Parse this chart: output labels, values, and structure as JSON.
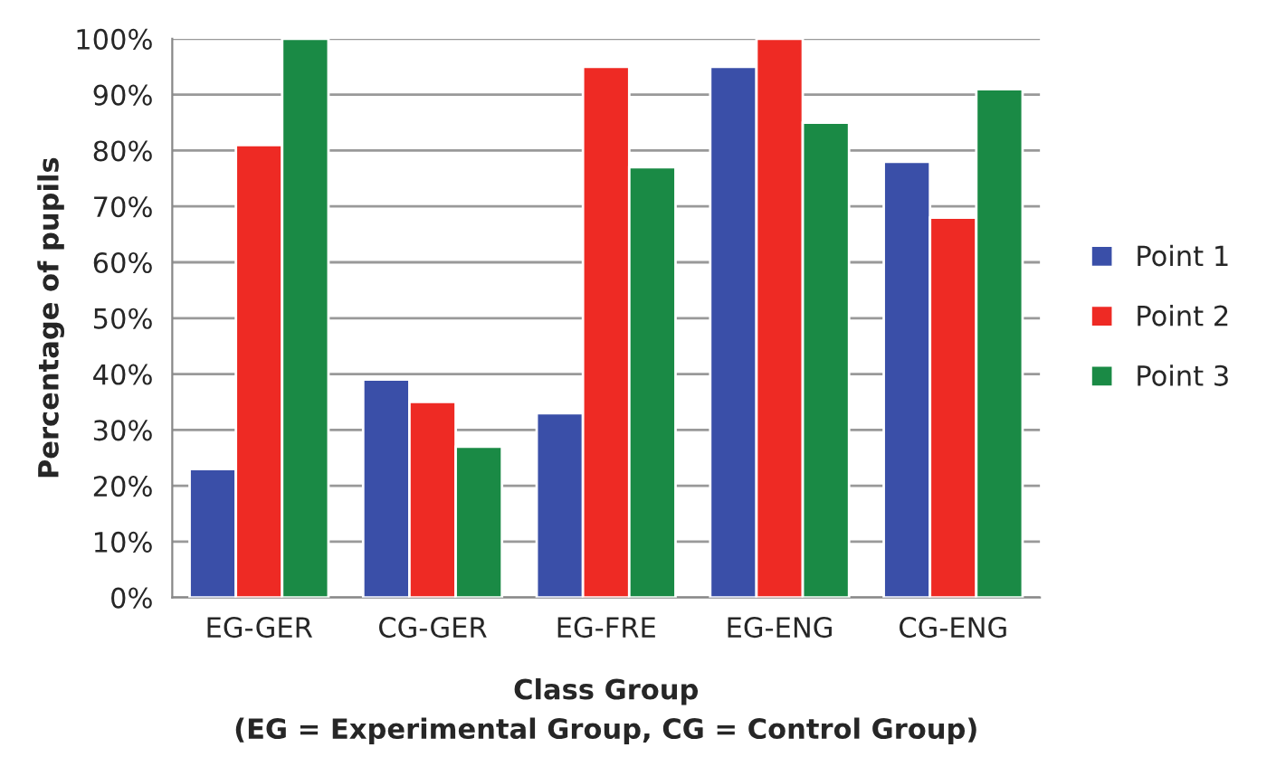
{
  "chart_data": {
    "type": "bar",
    "categories": [
      "EG-GER",
      "CG-GER",
      "EG-FRE",
      "EG-ENG",
      "CG-ENG"
    ],
    "series": [
      {
        "name": "Point 1",
        "color": "#3a4fa8",
        "values": [
          23,
          39,
          33,
          95,
          78
        ]
      },
      {
        "name": "Point 2",
        "color": "#ee2a24",
        "values": [
          81,
          35,
          95,
          100,
          68
        ]
      },
      {
        "name": "Point 3",
        "color": "#1a8a45",
        "values": [
          100,
          27,
          77,
          85,
          91
        ]
      }
    ],
    "xlabel": "Class Group\n(EG = Experimental Group, CG = Control Group)",
    "ylabel": "Percentage of pupils",
    "ylim": [
      0,
      100
    ],
    "yticks": [
      {
        "value": 0,
        "label": "0%"
      },
      {
        "value": 10,
        "label": "10%"
      },
      {
        "value": 20,
        "label": "20%"
      },
      {
        "value": 30,
        "label": "30%"
      },
      {
        "value": 40,
        "label": "40%"
      },
      {
        "value": 50,
        "label": "50%"
      },
      {
        "value": 60,
        "label": "60%"
      },
      {
        "value": 70,
        "label": "70%"
      },
      {
        "value": 80,
        "label": "80%"
      },
      {
        "value": 90,
        "label": "90%"
      },
      {
        "value": 100,
        "label": "100%"
      }
    ],
    "grid": "y",
    "legend": "right"
  }
}
